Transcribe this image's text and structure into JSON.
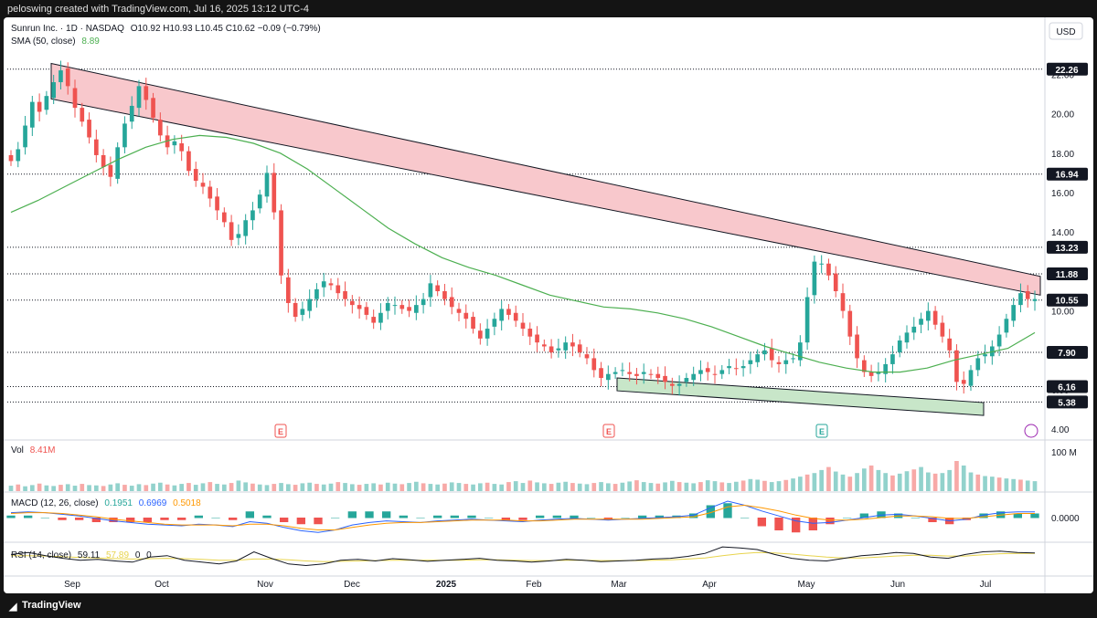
{
  "header": {
    "credit": "peloswing created with TradingView.com, Jul 16, 2025 13:12 UTC-4"
  },
  "legend": {
    "symbol": "Sunrun Inc. · 1D · NASDAQ",
    "ohlc": "O10.92  H10.93  L10.45  C10.62  −0.09 (−0.79%)",
    "sma_label": "SMA (50, close)",
    "sma_value": "8.89",
    "vol_label": "Vol",
    "vol_value": "8.41M",
    "macd_label": "MACD (12, 26, close)",
    "macd_values": [
      "0.1951",
      "0.6969",
      "0.5018"
    ],
    "rsi_label": "RSI (14, close)",
    "rsi_values": [
      "59.11",
      "57.89",
      "0",
      "0"
    ]
  },
  "price_axis": {
    "currency": "USD",
    "ticks": [
      "4.00",
      "6.00",
      "8.00",
      "10.00",
      "12.00",
      "14.00",
      "16.00",
      "18.00",
      "20.00",
      "22.00"
    ],
    "levels": [
      {
        "value": 22.26,
        "label": "22.26",
        "style": "dark"
      },
      {
        "value": 16.94,
        "label": "16.94",
        "style": "dark"
      },
      {
        "value": 13.23,
        "label": "13.23",
        "style": "dark"
      },
      {
        "value": 11.88,
        "label": "11.88",
        "style": "dark"
      },
      {
        "value": 10.55,
        "label": "10.55",
        "style": "dark"
      },
      {
        "value": 7.9,
        "label": "7.90",
        "style": "dark"
      },
      {
        "value": 6.16,
        "label": "6.16",
        "style": "dark"
      },
      {
        "value": 5.38,
        "label": "5.38",
        "style": "dark"
      }
    ]
  },
  "vol_axis": {
    "label": "100 M"
  },
  "macd_axis": {
    "label": "0.0000"
  },
  "time_axis": [
    "Sep",
    "Oct",
    "Nov",
    "Dec",
    "2025",
    "Feb",
    "Mar",
    "Apr",
    "May",
    "Jun",
    "Jul"
  ],
  "earnings_markers": [
    "E",
    "E",
    "E"
  ],
  "colors": {
    "up": "#26a69a",
    "down": "#ef5350",
    "sma": "#4caf50",
    "resistance_fill": "#f8c8cc",
    "support_fill": "#c8e6c9",
    "macd_line": "#2962ff",
    "signal_line": "#ff9800",
    "rsi_line": "#131722",
    "rsi_ma": "#e8d44d"
  },
  "footer": {
    "brand": "TradingView"
  },
  "chart_data": [
    {
      "type": "candlestick",
      "title": "Sunrun Inc. · 1D · NASDAQ",
      "ylim": [
        3.5,
        23.5
      ],
      "x_labels": [
        "Sep",
        "Oct",
        "Nov",
        "Dec",
        "2025",
        "Feb",
        "Mar",
        "Apr",
        "May",
        "Jun",
        "Jul"
      ],
      "close": [
        17.6,
        18.2,
        19.4,
        20.6,
        20.1,
        20.9,
        21.6,
        22.2,
        21.4,
        20.3,
        19.6,
        18.8,
        17.9,
        17.3,
        16.8,
        18.3,
        19.5,
        20.4,
        21.4,
        20.7,
        19.8,
        18.9,
        18.3,
        18.6,
        18.1,
        17.1,
        16.6,
        16.3,
        15.7,
        15.1,
        14.5,
        13.6,
        13.9,
        14.6,
        15.1,
        15.9,
        17.0,
        15.0,
        11.8,
        10.4,
        9.7,
        10.1,
        10.6,
        11.1,
        11.5,
        11.3,
        10.9,
        10.6,
        10.3,
        10.1,
        9.8,
        9.4,
        9.9,
        10.4,
        10.3,
        10.1,
        10.0,
        10.3,
        10.6,
        11.4,
        11.0,
        10.6,
        10.2,
        9.9,
        9.6,
        9.1,
        8.6,
        9.1,
        9.6,
        10.1,
        9.8,
        9.5,
        9.1,
        8.7,
        8.4,
        8.2,
        7.9,
        8.1,
        8.4,
        8.2,
        7.9,
        7.6,
        7.0,
        6.6,
        6.8,
        6.9,
        7.0,
        6.8,
        6.7,
        6.9,
        6.8,
        6.6,
        6.4,
        6.2,
        6.3,
        6.6,
        6.8,
        7.0,
        6.9,
        6.8,
        7.0,
        7.2,
        7.1,
        7.2,
        7.5,
        7.8,
        8.0,
        7.5,
        7.3,
        7.5,
        7.6,
        8.4,
        10.7,
        12.5,
        12.4,
        11.8,
        11.0,
        10.0,
        8.7,
        7.6,
        6.9,
        6.7,
        6.9,
        7.3,
        7.8,
        8.5,
        8.9,
        9.2,
        9.6,
        10.0,
        9.3,
        8.7,
        8.0,
        6.4,
        6.3,
        7.0,
        7.6,
        7.8,
        8.2,
        8.8,
        9.6,
        10.3,
        10.9,
        10.6,
        10.6
      ],
      "sma": [
        15.0,
        15.6,
        16.3,
        17.0,
        17.7,
        18.3,
        18.7,
        18.9,
        18.8,
        18.5,
        18.0,
        17.2,
        16.2,
        15.2,
        14.2,
        13.4,
        12.7,
        12.2,
        11.8,
        11.3,
        10.8,
        10.5,
        10.2,
        10.1,
        9.9,
        9.6,
        9.2,
        8.7,
        8.2,
        7.8,
        7.4,
        7.1,
        6.9,
        6.9,
        7.1,
        7.5,
        7.8,
        8.1,
        8.9
      ]
    },
    {
      "type": "bar",
      "title": "Vol",
      "series": [
        {
          "name": "Vol",
          "values": [
            18,
            22,
            16,
            20,
            25,
            19,
            17,
            21,
            23,
            18,
            24,
            20,
            19,
            17,
            22,
            26,
            21,
            18,
            23,
            20,
            25,
            28,
            22,
            19,
            24,
            27,
            21,
            26,
            30,
            24,
            22,
            27,
            35,
            29,
            25,
            22,
            20,
            24,
            27,
            23,
            21,
            26,
            28,
            24,
            22,
            25,
            30,
            27,
            23,
            21,
            24,
            26,
            22,
            28,
            25,
            23,
            27,
            31,
            26,
            24,
            22,
            25,
            29,
            27,
            24,
            22,
            26,
            28,
            24,
            22,
            30,
            33,
            27,
            35,
            29,
            26,
            24,
            28,
            31,
            27,
            25,
            23,
            27,
            30,
            26,
            24,
            28,
            32,
            36,
            30,
            27,
            25,
            29,
            34,
            30,
            28,
            26,
            30,
            36,
            33,
            29,
            27,
            31,
            35,
            40,
            38,
            34,
            30,
            33,
            37,
            42,
            48,
            55,
            60,
            70,
            80,
            65,
            55,
            48,
            60,
            75,
            85,
            70,
            60,
            52,
            58,
            66,
            72,
            80,
            62,
            58,
            60,
            70,
            100,
            85,
            62,
            55,
            50,
            48,
            45,
            42,
            40,
            38,
            35,
            33
          ]
        }
      ]
    },
    {
      "type": "line",
      "title": "MACD (12, 26, close)",
      "series": [
        {
          "name": "MACD",
          "values": [
            0.6,
            0.7,
            0.6,
            0.4,
            0.2,
            -0.1,
            -0.4,
            -0.6,
            -0.8,
            -0.9,
            -1.0,
            -0.8,
            -0.9,
            -1.1,
            -0.5,
            -0.7,
            -1.2,
            -1.6,
            -1.8,
            -1.5,
            -0.9,
            -0.6,
            -0.4,
            -0.5,
            -0.6,
            -0.4,
            -0.3,
            -0.2,
            -0.3,
            -0.4,
            -0.5,
            -0.3,
            -0.2,
            -0.1,
            -0.2,
            -0.3,
            -0.2,
            -0.1,
            0.0,
            0.1,
            0.3,
            1.2,
            2.0,
            1.5,
            0.8,
            0.2,
            -0.4,
            -0.7,
            -0.6,
            -0.3,
            0.0,
            0.3,
            0.4,
            0.2,
            -0.1,
            -0.4,
            -0.2,
            0.3,
            0.6,
            0.7,
            0.7
          ]
        },
        {
          "name": "Signal",
          "values": [
            0.5,
            0.6,
            0.6,
            0.5,
            0.3,
            0.1,
            -0.2,
            -0.4,
            -0.6,
            -0.8,
            -0.9,
            -0.9,
            -0.9,
            -1.0,
            -0.8,
            -0.8,
            -1.0,
            -1.3,
            -1.5,
            -1.5,
            -1.2,
            -0.9,
            -0.7,
            -0.6,
            -0.6,
            -0.5,
            -0.4,
            -0.3,
            -0.3,
            -0.3,
            -0.4,
            -0.4,
            -0.3,
            -0.2,
            -0.2,
            -0.2,
            -0.2,
            -0.2,
            -0.1,
            0.0,
            0.1,
            0.6,
            1.3,
            1.5,
            1.2,
            0.8,
            0.3,
            -0.1,
            -0.3,
            -0.3,
            -0.2,
            0.0,
            0.2,
            0.2,
            0.1,
            -0.1,
            -0.1,
            0.1,
            0.3,
            0.5,
            0.5
          ]
        }
      ]
    },
    {
      "type": "line",
      "title": "RSI (14, close)",
      "series": [
        {
          "name": "RSI",
          "values": [
            55,
            60,
            52,
            45,
            40,
            42,
            38,
            35,
            48,
            52,
            40,
            35,
            30,
            38,
            62,
            45,
            30,
            26,
            30,
            40,
            42,
            38,
            44,
            41,
            37,
            40,
            42,
            45,
            40,
            38,
            35,
            38,
            42,
            40,
            36,
            38,
            40,
            43,
            45,
            50,
            58,
            75,
            72,
            68,
            55,
            45,
            40,
            38,
            45,
            52,
            55,
            60,
            58,
            48,
            45,
            55,
            62,
            64,
            60,
            59
          ]
        },
        {
          "name": "RSI MA",
          "values": [
            52,
            52,
            51,
            49,
            47,
            46,
            44,
            43,
            44,
            45,
            44,
            42,
            40,
            40,
            43,
            43,
            41,
            38,
            36,
            37,
            38,
            39,
            40,
            40,
            40,
            40,
            40,
            41,
            41,
            40,
            39,
            39,
            40,
            40,
            39,
            39,
            39,
            40,
            41,
            43,
            46,
            52,
            57,
            60,
            59,
            56,
            52,
            48,
            46,
            46,
            48,
            51,
            53,
            53,
            51,
            51,
            54,
            57,
            58,
            58
          ]
        }
      ]
    }
  ]
}
